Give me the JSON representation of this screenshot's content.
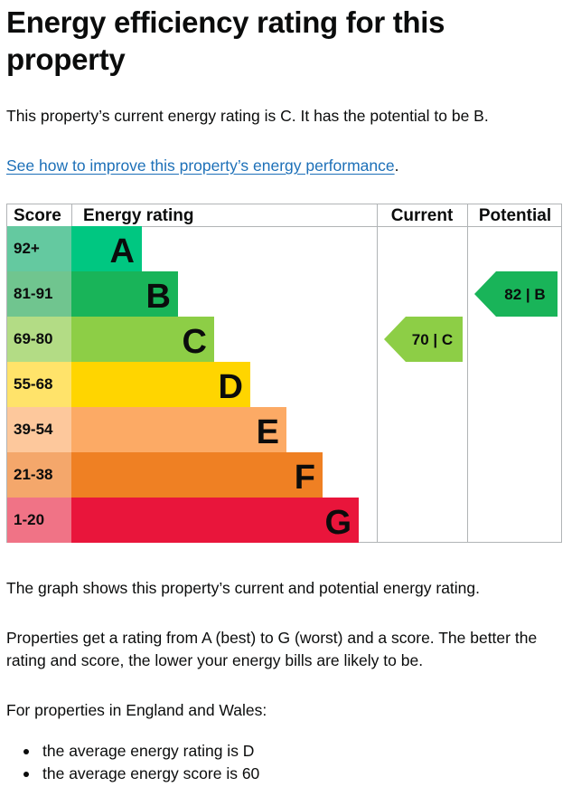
{
  "page": {
    "title": "Energy efficiency rating for this property",
    "summary": "This property’s current energy rating is C. It has the potential to be B.",
    "improve_link": "See how to improve this property’s energy performance",
    "improve_link_suffix": ".",
    "graph_note": "The graph shows this property’s current and potential energy rating.",
    "rating_explainer": "Properties get a rating from A (best) to G (worst) and a score. The better the rating and score, the lower your energy bills are likely to be.",
    "region_intro": "For properties in England and Wales:",
    "bullets": [
      "the average energy rating is D",
      "the average energy score is 60"
    ]
  },
  "chart_data": {
    "type": "bar",
    "headers": {
      "score": "Score",
      "rating": "Energy rating",
      "current": "Current",
      "potential": "Potential"
    },
    "bands": [
      {
        "score": "92+",
        "letter": "A",
        "color": "#00c781",
        "score_bg": "#64c9a0"
      },
      {
        "score": "81-91",
        "letter": "B",
        "color": "#19b459",
        "score_bg": "#70c58f"
      },
      {
        "score": "69-80",
        "letter": "C",
        "color": "#8dce46",
        "score_bg": "#b3dc85"
      },
      {
        "score": "55-68",
        "letter": "D",
        "color": "#ffd500",
        "score_bg": "#ffe36a"
      },
      {
        "score": "39-54",
        "letter": "E",
        "color": "#fcaa65",
        "score_bg": "#fdc89c"
      },
      {
        "score": "21-38",
        "letter": "F",
        "color": "#ef8023",
        "score_bg": "#f4a76b"
      },
      {
        "score": "1-20",
        "letter": "G",
        "color": "#e9153b",
        "score_bg": "#f07386"
      }
    ],
    "current": {
      "score": 70,
      "letter": "C",
      "label": "70 | C",
      "color": "#8dce46"
    },
    "potential": {
      "score": 82,
      "letter": "B",
      "label": "82 | B",
      "color": "#19b459"
    }
  }
}
